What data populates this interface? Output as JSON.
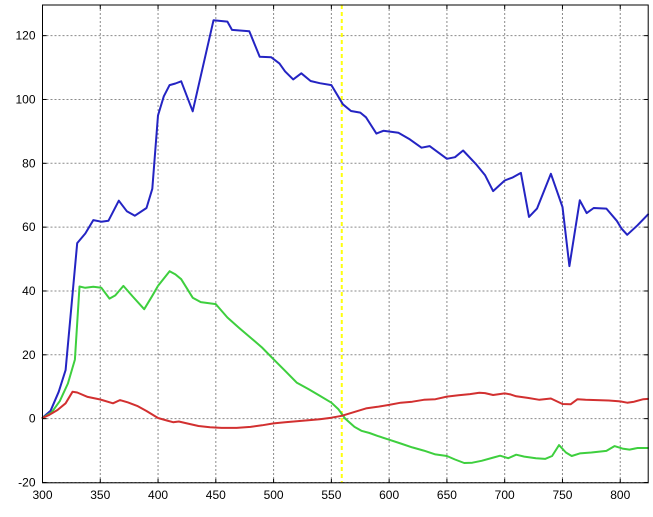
{
  "figure": {
    "background": "#ffffff",
    "border_color": "#000000",
    "grid_color": "#8a8a8a",
    "tick_label_color": "#000000"
  },
  "chart_data": {
    "type": "line",
    "title": "",
    "xlabel": "",
    "ylabel": "",
    "xlim": [
      300,
      824.2
    ],
    "ylim": [
      -20.1,
      129.6
    ],
    "x_ticks": [
      300,
      350,
      400,
      450,
      500,
      550,
      600,
      650,
      700,
      750,
      800
    ],
    "y_ticks": [
      -20,
      0,
      20,
      40,
      60,
      80,
      100,
      120
    ],
    "grid": true,
    "legend": "none",
    "marker_line": {
      "x": 559,
      "color": "#ffff00",
      "style": "dashed"
    },
    "series": [
      {
        "name": "blue-curve",
        "color": "#2424c3",
        "points": [
          [
            300,
            0.3
          ],
          [
            307,
            2.5
          ],
          [
            314,
            8.4
          ],
          [
            320,
            15.2
          ],
          [
            330,
            55
          ],
          [
            337,
            58
          ],
          [
            344,
            62.2
          ],
          [
            351,
            61.7
          ],
          [
            357,
            62
          ],
          [
            366,
            68.3
          ],
          [
            373,
            65
          ],
          [
            380,
            63.6
          ],
          [
            390,
            66
          ],
          [
            395,
            72
          ],
          [
            400,
            95
          ],
          [
            405,
            101
          ],
          [
            410,
            104.5
          ],
          [
            415,
            105
          ],
          [
            420,
            105.7
          ],
          [
            430,
            96.3
          ],
          [
            448,
            124.8
          ],
          [
            460,
            124.4
          ],
          [
            464,
            121.8
          ],
          [
            479,
            121.4
          ],
          [
            488,
            113.4
          ],
          [
            498,
            113.2
          ],
          [
            505,
            111.3
          ],
          [
            510,
            108.8
          ],
          [
            517,
            106.3
          ],
          [
            524,
            108.2
          ],
          [
            532,
            105.8
          ],
          [
            540,
            105.1
          ],
          [
            550,
            104.5
          ],
          [
            560,
            98.5
          ],
          [
            567,
            96.4
          ],
          [
            575,
            95.9
          ],
          [
            580,
            94.4
          ],
          [
            589,
            89.3
          ],
          [
            595,
            90.2
          ],
          [
            608,
            89.6
          ],
          [
            618,
            87.5
          ],
          [
            628,
            84.9
          ],
          [
            635,
            85.4
          ],
          [
            650,
            81.4
          ],
          [
            657,
            81.9
          ],
          [
            664,
            84
          ],
          [
            675,
            79.8
          ],
          [
            683,
            76.3
          ],
          [
            690,
            71.3
          ],
          [
            700,
            74.6
          ],
          [
            707,
            75.6
          ],
          [
            714,
            77
          ],
          [
            721,
            63.2
          ],
          [
            728,
            65.8
          ],
          [
            740,
            76.7
          ],
          [
            750,
            66.3
          ],
          [
            756,
            47.8
          ],
          [
            765,
            68.4
          ],
          [
            771,
            64.4
          ],
          [
            777,
            66
          ],
          [
            788,
            65.8
          ],
          [
            797,
            62
          ],
          [
            801,
            59.6
          ],
          [
            806,
            57.6
          ],
          [
            815,
            60.6
          ],
          [
            824,
            64
          ]
        ]
      },
      {
        "name": "green-curve",
        "color": "#3ecf3e",
        "points": [
          [
            300,
            0.2
          ],
          [
            308,
            2
          ],
          [
            315,
            5.5
          ],
          [
            322,
            11
          ],
          [
            328,
            18.5
          ],
          [
            332,
            41.4
          ],
          [
            337,
            41
          ],
          [
            344,
            41.3
          ],
          [
            351,
            41
          ],
          [
            358,
            37.6
          ],
          [
            363,
            38.6
          ],
          [
            370,
            41.6
          ],
          [
            378,
            38.3
          ],
          [
            388,
            34.3
          ],
          [
            395,
            38.5
          ],
          [
            400,
            41.6
          ],
          [
            410,
            46.2
          ],
          [
            415,
            45.2
          ],
          [
            420,
            43.7
          ],
          [
            430,
            37.9
          ],
          [
            437,
            36.5
          ],
          [
            450,
            35.9
          ],
          [
            460,
            31.7
          ],
          [
            470,
            28.5
          ],
          [
            480,
            25.4
          ],
          [
            490,
            22.3
          ],
          [
            500,
            18.6
          ],
          [
            510,
            15
          ],
          [
            520,
            11.3
          ],
          [
            530,
            9.3
          ],
          [
            540,
            7.2
          ],
          [
            550,
            5
          ],
          [
            556,
            3
          ],
          [
            562,
            0
          ],
          [
            570,
            -2.6
          ],
          [
            576,
            -3.8
          ],
          [
            583,
            -4.5
          ],
          [
            590,
            -5.4
          ],
          [
            600,
            -6.6
          ],
          [
            610,
            -7.8
          ],
          [
            620,
            -9
          ],
          [
            630,
            -10
          ],
          [
            640,
            -11.2
          ],
          [
            650,
            -11.7
          ],
          [
            657,
            -12.8
          ],
          [
            665,
            -13.9
          ],
          [
            672,
            -13.8
          ],
          [
            680,
            -13.2
          ],
          [
            690,
            -12.2
          ],
          [
            696,
            -11.6
          ],
          [
            703,
            -12.4
          ],
          [
            710,
            -11.3
          ],
          [
            717,
            -11.9
          ],
          [
            727,
            -12.4
          ],
          [
            735,
            -12.6
          ],
          [
            741,
            -11.7
          ],
          [
            747,
            -8.3
          ],
          [
            753,
            -10.6
          ],
          [
            758,
            -11.7
          ],
          [
            765,
            -10.9
          ],
          [
            775,
            -10.6
          ],
          [
            788,
            -10.1
          ],
          [
            795,
            -8.6
          ],
          [
            802,
            -9.4
          ],
          [
            808,
            -9.7
          ],
          [
            815,
            -9.2
          ],
          [
            824,
            -9.2
          ]
        ]
      },
      {
        "name": "red-curve",
        "color": "#d23030",
        "points": [
          [
            300,
            0.2
          ],
          [
            306,
            1.2
          ],
          [
            313,
            2.7
          ],
          [
            320,
            4.8
          ],
          [
            326,
            8.4
          ],
          [
            330,
            8.2
          ],
          [
            339,
            6.8
          ],
          [
            350,
            6.0
          ],
          [
            361,
            4.8
          ],
          [
            367,
            5.8
          ],
          [
            374,
            5.1
          ],
          [
            382,
            4.0
          ],
          [
            390,
            2.4
          ],
          [
            400,
            0.2
          ],
          [
            408,
            -0.6
          ],
          [
            413,
            -1.1
          ],
          [
            418,
            -0.9
          ],
          [
            425,
            -1.5
          ],
          [
            435,
            -2.3
          ],
          [
            445,
            -2.7
          ],
          [
            455,
            -2.9
          ],
          [
            468,
            -2.9
          ],
          [
            480,
            -2.6
          ],
          [
            490,
            -2.1
          ],
          [
            500,
            -1.5
          ],
          [
            510,
            -1.1
          ],
          [
            520,
            -0.8
          ],
          [
            530,
            -0.5
          ],
          [
            540,
            -0.2
          ],
          [
            550,
            0.3
          ],
          [
            559,
            0.9
          ],
          [
            570,
            2.1
          ],
          [
            580,
            3.2
          ],
          [
            590,
            3.7
          ],
          [
            600,
            4.3
          ],
          [
            610,
            5.0
          ],
          [
            620,
            5.3
          ],
          [
            630,
            5.9
          ],
          [
            640,
            6.1
          ],
          [
            650,
            6.9
          ],
          [
            660,
            7.3
          ],
          [
            670,
            7.7
          ],
          [
            678,
            8.1
          ],
          [
            683,
            8.0
          ],
          [
            690,
            7.4
          ],
          [
            700,
            7.9
          ],
          [
            705,
            7.6
          ],
          [
            710,
            7.0
          ],
          [
            720,
            6.5
          ],
          [
            730,
            5.9
          ],
          [
            740,
            6.3
          ],
          [
            750,
            4.6
          ],
          [
            757,
            4.5
          ],
          [
            763,
            6.1
          ],
          [
            770,
            5.9
          ],
          [
            780,
            5.8
          ],
          [
            790,
            5.7
          ],
          [
            800,
            5.4
          ],
          [
            806,
            5.0
          ],
          [
            812,
            5.3
          ],
          [
            820,
            6.1
          ],
          [
            824,
            6.2
          ]
        ]
      }
    ]
  }
}
